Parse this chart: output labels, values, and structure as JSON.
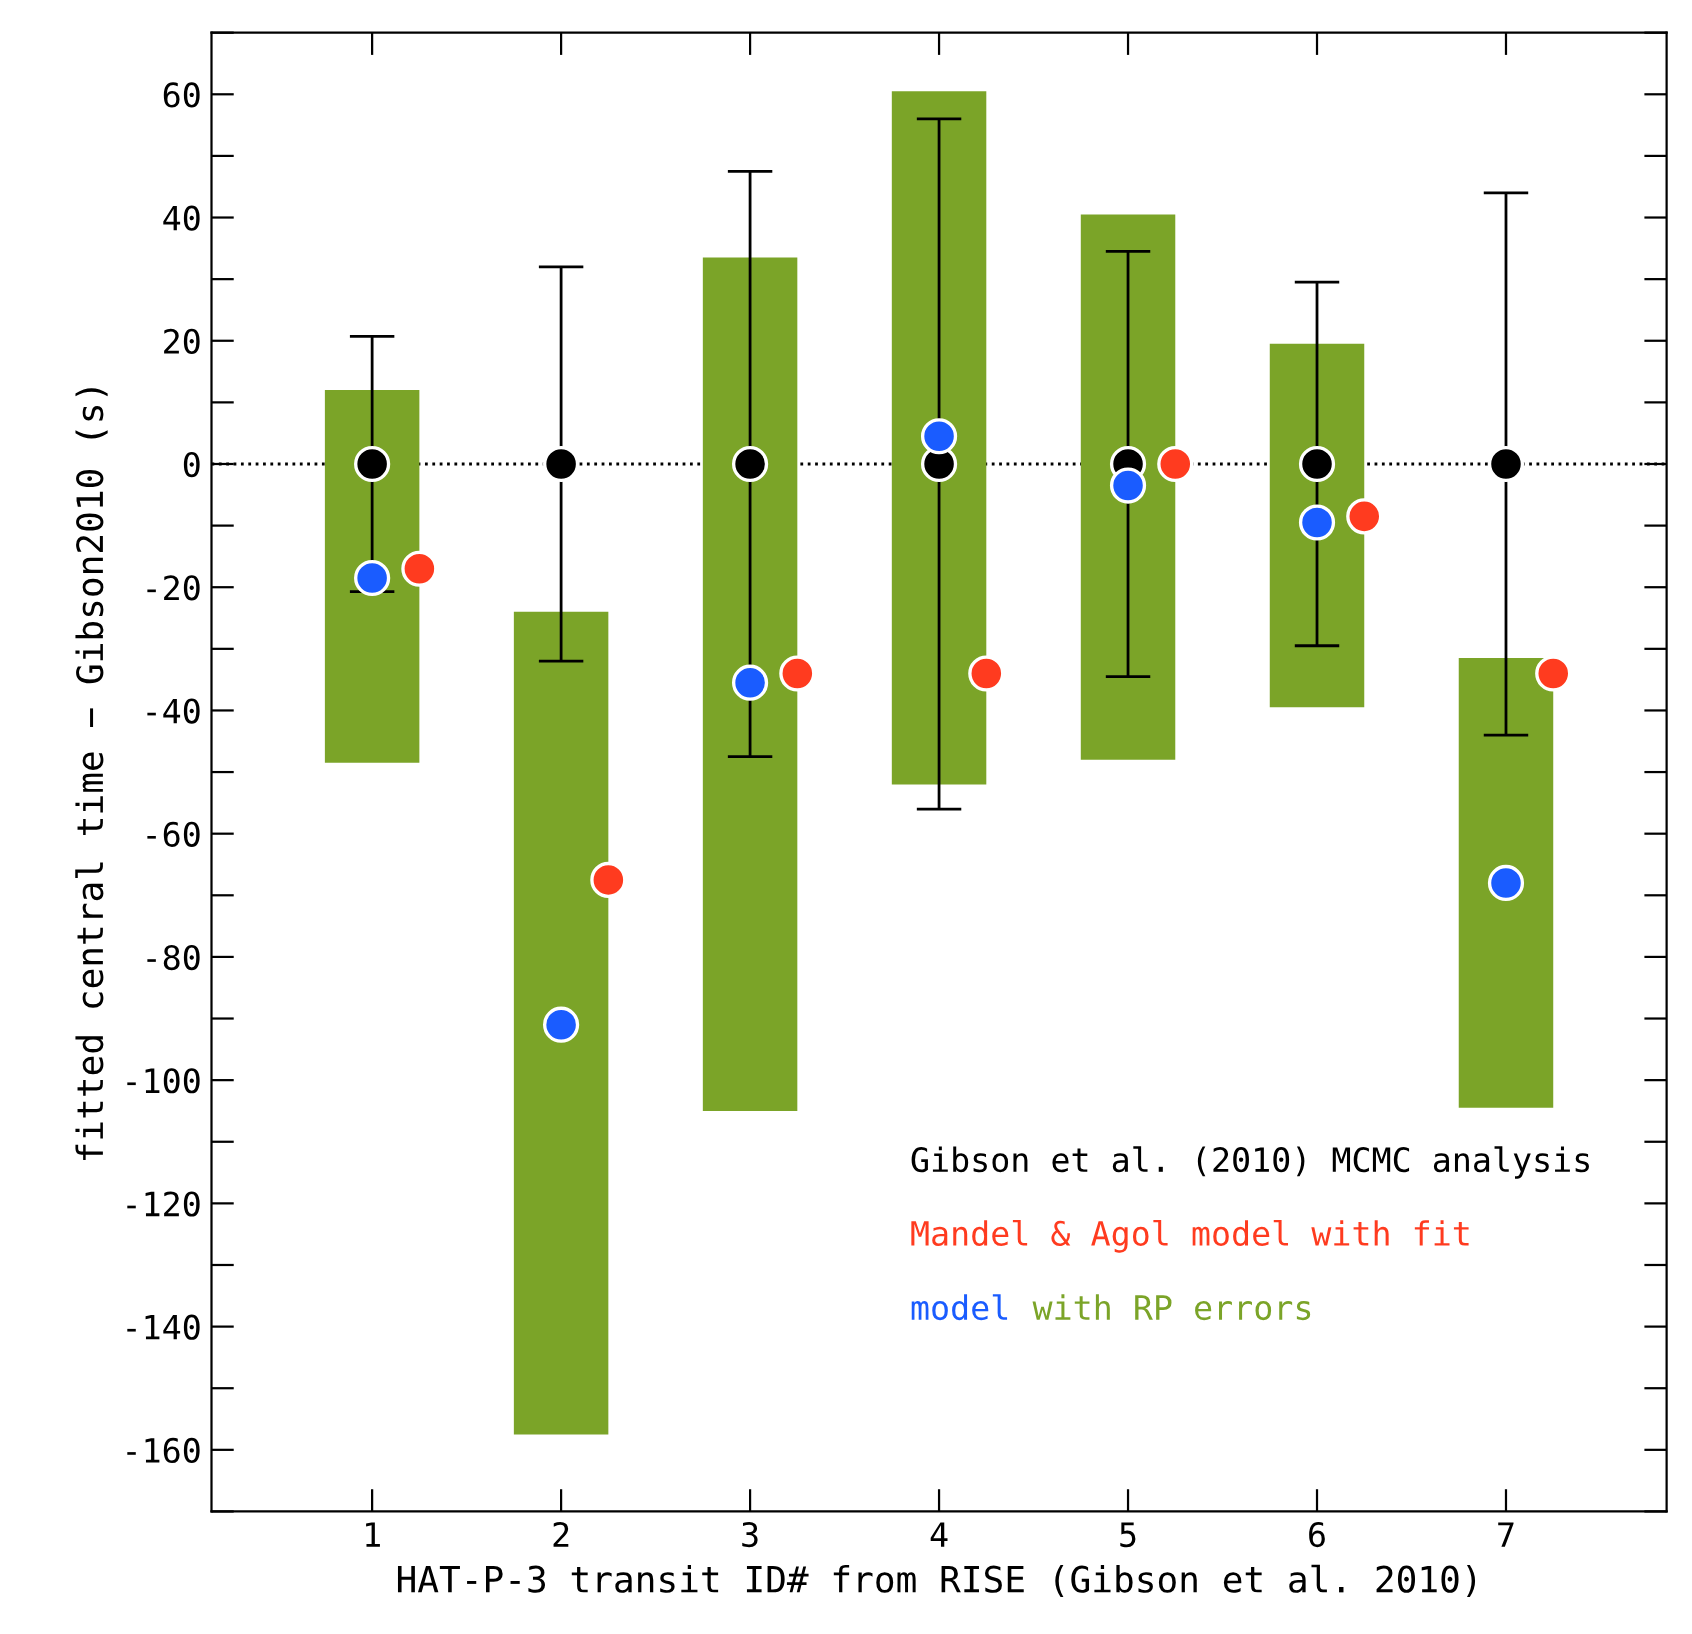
{
  "chart_data": {
    "type": "scatter",
    "xlabel": "HAT-P-3 transit ID# from RISE (Gibson et al. 2010)",
    "ylabel": "fitted central time − Gibson2010 (s)",
    "xlim": [
      0.15,
      7.85
    ],
    "xticks": [
      1,
      2,
      3,
      4,
      5,
      6,
      7
    ],
    "ylim": [
      -170,
      70
    ],
    "yticks": [
      {
        "value": -170,
        "label": null
      },
      -160,
      {
        "value": -150,
        "label": null
      },
      -140,
      {
        "value": -130,
        "label": null
      },
      -120,
      {
        "value": -110,
        "label": null
      },
      -100,
      {
        "value": -90,
        "label": null
      },
      -80,
      {
        "value": -70,
        "label": null
      },
      -60,
      {
        "value": -50,
        "label": null
      },
      -40,
      {
        "value": -30,
        "label": null
      },
      -20,
      {
        "value": -10,
        "label": null
      },
      0,
      {
        "value": 10,
        "label": null
      },
      20,
      {
        "value": 30,
        "label": null
      },
      40,
      {
        "value": 50,
        "label": null
      },
      60,
      {
        "value": 70,
        "label": null
      }
    ],
    "grid": false,
    "legend": "bottom right",
    "marker": "circle",
    "ref_lines": [
      {
        "axis": "y",
        "value": 0,
        "line_style": "dotted",
        "color": "#000000"
      }
    ],
    "series": [
      {
        "name": "with RP errors",
        "type": "bar",
        "color": "#7ba428",
        "x": [
          1,
          2,
          3,
          4,
          5,
          6,
          7
        ],
        "base": [
          -48.5,
          -157.5,
          -105,
          -52,
          -48,
          -39.5,
          -104.5
        ],
        "values": [
          60.5,
          133.5,
          138.5,
          112.5,
          88.5,
          59,
          73
        ]
      },
      {
        "name": "Gibson et al. (2010) MCMC analysis",
        "color": "#000000",
        "x": [
          1,
          2,
          3,
          4,
          5,
          6,
          7
        ],
        "values": [
          0,
          0,
          0,
          0,
          0,
          0,
          0
        ],
        "errors": [
          20.7,
          32,
          47.5,
          56,
          34.5,
          29.5,
          44
        ]
      },
      {
        "name": "Mandel & Agol model with fit",
        "color": "#ff3b1f",
        "x": [
          1.25,
          2.25,
          3.25,
          4.25,
          5.25,
          6.25,
          7.25
        ],
        "values": [
          -17,
          -67.5,
          -34,
          -34,
          0,
          -8.5,
          -34
        ]
      },
      {
        "name": "model",
        "color": "#1a5cff",
        "x": [
          1,
          2,
          3,
          4,
          5,
          6,
          7
        ],
        "values": [
          -18.5,
          -91,
          -35.5,
          4.5,
          -3.5,
          -9.5,
          -68
        ]
      }
    ]
  }
}
